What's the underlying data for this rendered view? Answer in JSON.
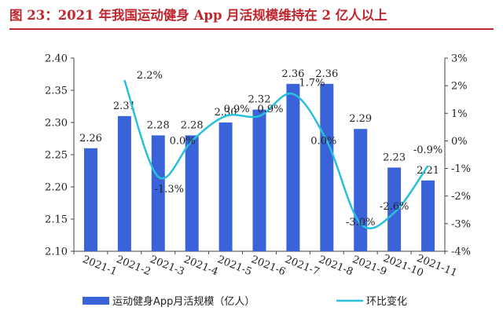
{
  "title": "图 23：2021 年我国运动健身 App 月活规模维持在 2 亿人以上",
  "colors": {
    "title": "#c0262d",
    "bar": "#3b63d9",
    "line": "#29c0dc"
  },
  "chart_data": {
    "type": "bar",
    "categories": [
      "2021-1",
      "2021-2",
      "2021-3",
      "2021-4",
      "2021-5",
      "2021-6",
      "2021-7",
      "2021-8",
      "2021-9",
      "2021-10",
      "2021-11"
    ],
    "series": [
      {
        "name": "运动健身App月活规模（亿人）",
        "type": "bar",
        "axis": "left",
        "values": [
          2.26,
          2.31,
          2.28,
          2.28,
          2.3,
          2.32,
          2.36,
          2.36,
          2.29,
          2.23,
          2.21
        ],
        "labels": [
          "2.26",
          "2.31",
          "2.28",
          "2.28",
          "2.30",
          "2.32",
          "2.36",
          "2.36",
          "2.29",
          "2.23",
          "2.21"
        ]
      },
      {
        "name": "环比变化",
        "type": "line",
        "axis": "right",
        "values": [
          null,
          2.2,
          -1.3,
          0.0,
          0.9,
          0.9,
          1.7,
          0.0,
          -3.0,
          -2.6,
          -0.9
        ],
        "labels": [
          "",
          "2.2%",
          "-1.3%",
          "0.0%",
          "0.9%",
          "0.9%",
          "1.7%",
          "0.0%",
          "-3.0%",
          "-2.6%",
          "-0.9%"
        ]
      }
    ],
    "y_left": {
      "min": 2.1,
      "max": 2.4,
      "ticks": [
        "2.10",
        "2.15",
        "2.20",
        "2.25",
        "2.30",
        "2.35",
        "2.40"
      ]
    },
    "y_right": {
      "min": -4,
      "max": 3,
      "ticks": [
        "-4%",
        "-3%",
        "-2%",
        "-1%",
        "0%",
        "1%",
        "2%",
        "3%"
      ]
    },
    "legend": {
      "placement": "bottom"
    },
    "grid": false
  }
}
